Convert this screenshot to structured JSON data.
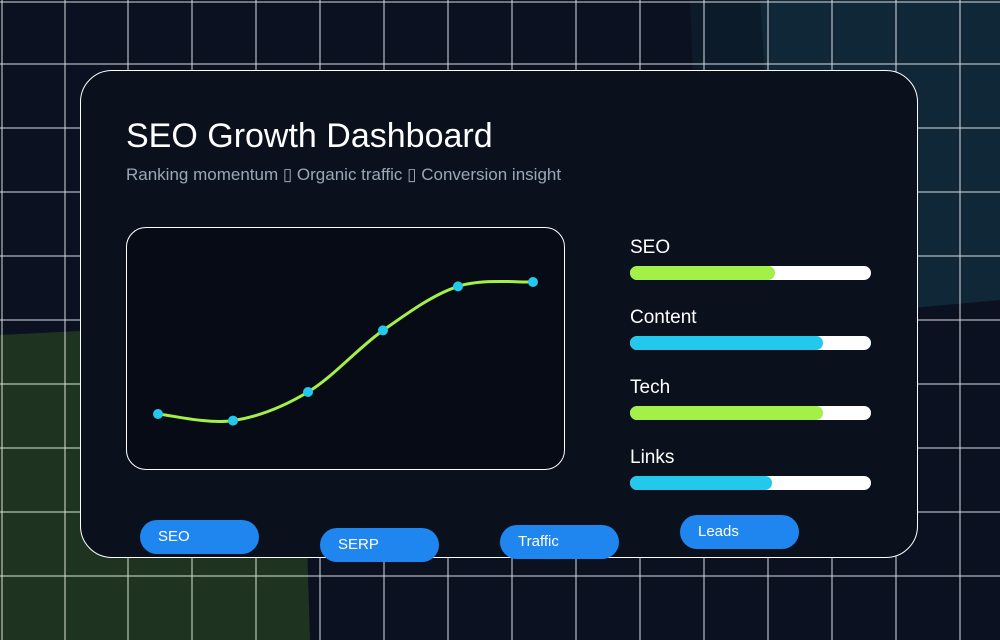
{
  "header": {
    "title": "SEO Growth Dashboard",
    "subtitle": "Ranking momentum ▯ Organic traffic ▯ Conversion insight"
  },
  "chart_data": {
    "type": "line",
    "x": [
      1,
      2,
      3,
      4,
      5,
      6
    ],
    "values": [
      20,
      17,
      30,
      58,
      78,
      80
    ],
    "ylim": [
      0,
      100
    ],
    "line_color": "#a3f048",
    "point_color": "#22c9ec"
  },
  "metrics": [
    {
      "label": "SEO",
      "value": 0.6,
      "color": "#a3f048"
    },
    {
      "label": "Content",
      "value": 0.8,
      "color": "#22c9ec"
    },
    {
      "label": "Tech",
      "value": 0.8,
      "color": "#a3f048"
    },
    {
      "label": "Links",
      "value": 0.59,
      "color": "#22c9ec"
    }
  ],
  "tags": [
    {
      "label": "SEO"
    },
    {
      "label": "SERP"
    },
    {
      "label": "Traffic"
    },
    {
      "label": "Leads"
    }
  ],
  "colors": {
    "background": "#0b1120",
    "card": "#0b111c",
    "accent_green": "#a3f048",
    "accent_cyan": "#22c9ec",
    "pill_blue": "#1f86f0"
  }
}
